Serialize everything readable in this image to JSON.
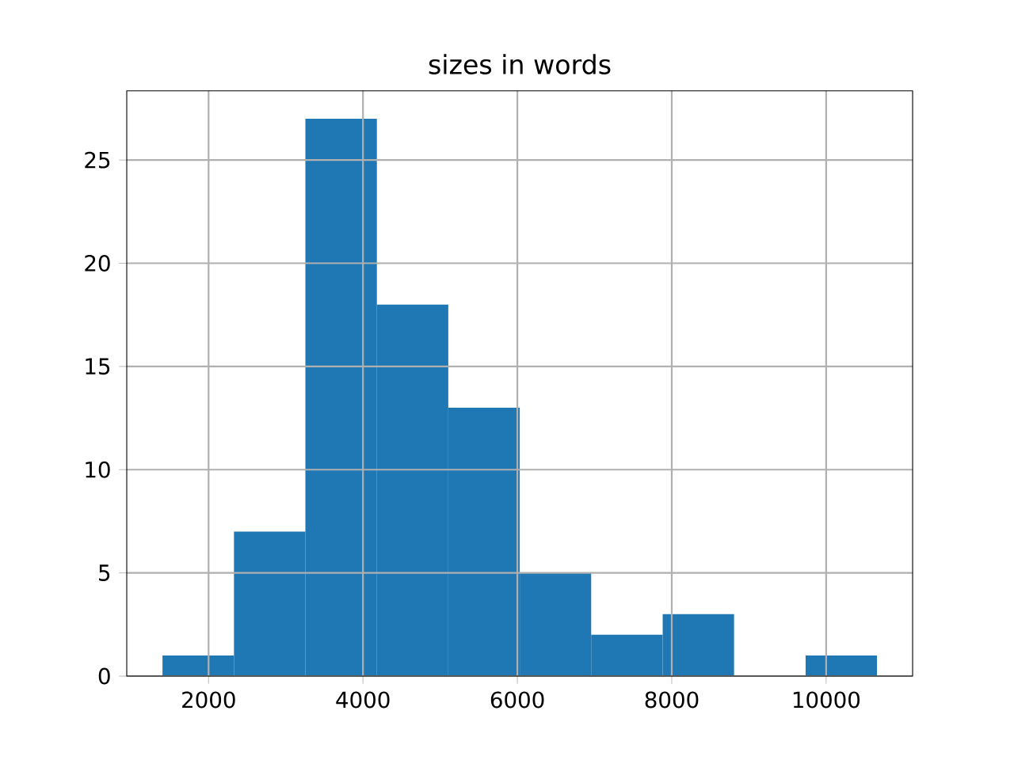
{
  "chart_data": {
    "type": "histogram",
    "title": "sizes in words",
    "bins": [
      1403,
      2329,
      3254,
      4180,
      5105,
      6031,
      6956,
      7882,
      8807,
      9733,
      10658
    ],
    "values": [
      1,
      7,
      27,
      18,
      13,
      5,
      2,
      3,
      0,
      1
    ],
    "color": "#1f77b4",
    "xlim": [
      940,
      11120
    ],
    "xticks": [
      2000,
      4000,
      6000,
      8000,
      10000
    ],
    "ylim": [
      0,
      28.35
    ],
    "yticks": [
      0,
      5,
      10,
      15,
      20,
      25
    ],
    "grid": true
  }
}
